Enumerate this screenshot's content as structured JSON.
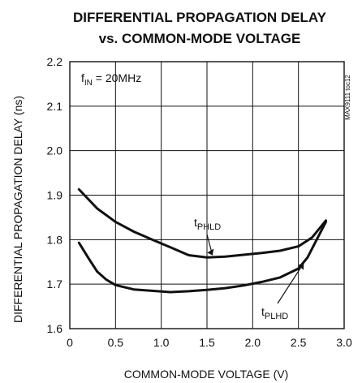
{
  "chart_data": {
    "type": "line",
    "title_line1": "DIFFERENTIAL PROPAGATION DELAY",
    "title_line2": "vs. COMMON-MODE VOLTAGE",
    "xlabel": "COMMON-MODE VOLTAGE (V)",
    "ylabel": "DIFFERENTIAL PROPAGATION DELAY (ns)",
    "xlim": [
      0,
      3.0
    ],
    "ylim": [
      1.6,
      2.2
    ],
    "x_ticks": [
      "0",
      "0.5",
      "1.0",
      "1.5",
      "2.0",
      "2.5",
      "3.0"
    ],
    "y_ticks": [
      "1.6",
      "1.7",
      "1.8",
      "1.9",
      "2.0",
      "2.1",
      "2.2"
    ],
    "grid": true,
    "condition": {
      "prefix": "f",
      "sub": "IN",
      "suffix": " = 20MHz"
    },
    "figure_id": "MAX9111 toc12",
    "series": [
      {
        "name": "tPHLD",
        "label_main": "t",
        "label_sub": "PHLD",
        "x": [
          0.1,
          0.3,
          0.5,
          0.7,
          0.9,
          1.1,
          1.3,
          1.5,
          1.7,
          1.9,
          2.1,
          2.3,
          2.5,
          2.65,
          2.8
        ],
        "y": [
          1.913,
          1.87,
          1.84,
          1.818,
          1.8,
          1.783,
          1.765,
          1.76,
          1.762,
          1.766,
          1.77,
          1.775,
          1.785,
          1.805,
          1.843
        ]
      },
      {
        "name": "tPLHD",
        "label_main": "t",
        "label_sub": "PLHD",
        "x": [
          0.1,
          0.2,
          0.3,
          0.4,
          0.5,
          0.7,
          0.9,
          1.1,
          1.3,
          1.5,
          1.7,
          1.9,
          2.1,
          2.3,
          2.5,
          2.6,
          2.7,
          2.8
        ],
        "y": [
          1.793,
          1.76,
          1.728,
          1.71,
          1.698,
          1.688,
          1.685,
          1.682,
          1.684,
          1.687,
          1.691,
          1.697,
          1.705,
          1.715,
          1.735,
          1.76,
          1.8,
          1.84
        ]
      }
    ]
  }
}
